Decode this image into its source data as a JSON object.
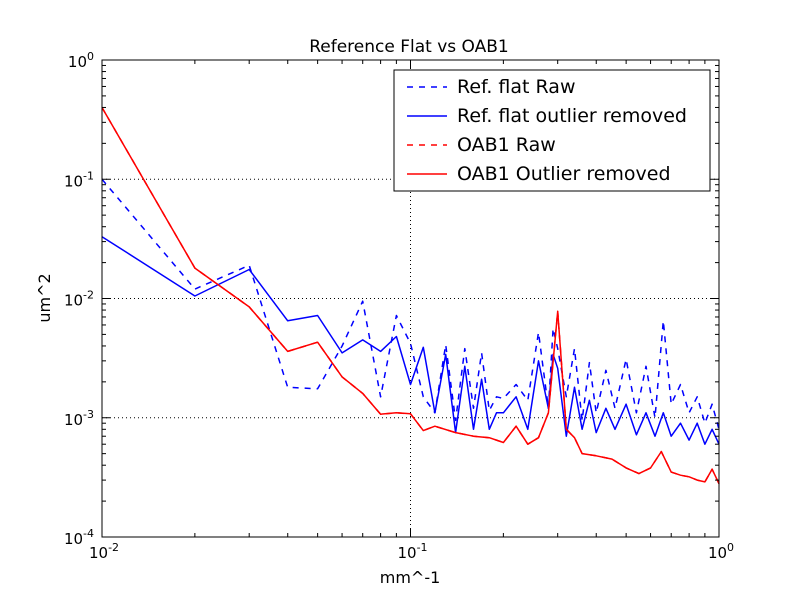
{
  "chart_data": {
    "type": "line",
    "title": "Reference Flat vs OAB1",
    "xlabel": "mm^-1",
    "ylabel": "um^2",
    "xscale": "log",
    "yscale": "log",
    "xlim": [
      0.01,
      1
    ],
    "ylim": [
      0.0001,
      1
    ],
    "grid": "major, dotted",
    "legend_position": "top-right",
    "x_ticks": [
      {
        "value": 0.01,
        "base": "10",
        "exp": "-2"
      },
      {
        "value": 0.1,
        "base": "10",
        "exp": "-1"
      },
      {
        "value": 1,
        "base": "10",
        "exp": "0"
      }
    ],
    "y_ticks": [
      {
        "value": 0.0001,
        "base": "10",
        "exp": "-4"
      },
      {
        "value": 0.001,
        "base": "10",
        "exp": "-3"
      },
      {
        "value": 0.01,
        "base": "10",
        "exp": "-2"
      },
      {
        "value": 0.1,
        "base": "10",
        "exp": "-1"
      },
      {
        "value": 1,
        "base": "10",
        "exp": "0"
      }
    ],
    "series": [
      {
        "name": "Ref. flat Raw",
        "color": "#0000ff",
        "dash": "dashed",
        "x": [
          0.01,
          0.02,
          0.03,
          0.04,
          0.05,
          0.06,
          0.07,
          0.08,
          0.09,
          0.1,
          0.11,
          0.12,
          0.13,
          0.14,
          0.15,
          0.16,
          0.17,
          0.18,
          0.19,
          0.2,
          0.22,
          0.24,
          0.26,
          0.28,
          0.29,
          0.3,
          0.32,
          0.34,
          0.36,
          0.38,
          0.4,
          0.43,
          0.46,
          0.5,
          0.54,
          0.58,
          0.62,
          0.66,
          0.7,
          0.75,
          0.8,
          0.85,
          0.9,
          0.95,
          1.0
        ],
        "y": [
          0.1,
          0.012,
          0.019,
          0.0018,
          0.00175,
          0.004,
          0.0095,
          0.0015,
          0.0072,
          0.0042,
          0.0015,
          0.0011,
          0.0041,
          0.00095,
          0.0038,
          0.0012,
          0.0035,
          0.00115,
          0.0015,
          0.00145,
          0.0019,
          0.0014,
          0.0052,
          0.0012,
          0.0056,
          0.0038,
          0.0015,
          0.0038,
          0.00095,
          0.0029,
          0.0011,
          0.0025,
          0.0012,
          0.0031,
          0.0011,
          0.0027,
          0.001,
          0.0065,
          0.0013,
          0.0019,
          0.0011,
          0.0015,
          0.0009,
          0.0013,
          0.0008
        ]
      },
      {
        "name": "Ref. flat outlier removed",
        "color": "#0000ff",
        "dash": "solid",
        "x": [
          0.01,
          0.02,
          0.03,
          0.04,
          0.05,
          0.06,
          0.07,
          0.08,
          0.09,
          0.1,
          0.11,
          0.12,
          0.13,
          0.14,
          0.15,
          0.16,
          0.17,
          0.18,
          0.19,
          0.2,
          0.22,
          0.24,
          0.26,
          0.28,
          0.29,
          0.3,
          0.32,
          0.34,
          0.36,
          0.38,
          0.4,
          0.43,
          0.46,
          0.5,
          0.54,
          0.58,
          0.62,
          0.66,
          0.7,
          0.75,
          0.8,
          0.85,
          0.9,
          0.95,
          1.0
        ],
        "y": [
          0.033,
          0.0105,
          0.0175,
          0.0065,
          0.0072,
          0.0035,
          0.0045,
          0.0036,
          0.0048,
          0.0019,
          0.0039,
          0.0011,
          0.0034,
          0.00075,
          0.0027,
          0.0008,
          0.0021,
          0.0008,
          0.0011,
          0.0011,
          0.0015,
          0.0008,
          0.003,
          0.0012,
          0.0034,
          0.0026,
          0.0007,
          0.0018,
          0.0008,
          0.0014,
          0.00075,
          0.0012,
          0.0008,
          0.0013,
          0.00072,
          0.0011,
          0.0007,
          0.0011,
          0.0007,
          0.0009,
          0.00065,
          0.0009,
          0.0006,
          0.0008,
          0.0006
        ]
      },
      {
        "name": "OAB1 Raw",
        "color": "#ff0000",
        "dash": "dashed",
        "x": [
          0.01,
          0.02,
          0.03,
          0.04,
          0.05,
          0.06,
          0.07,
          0.08,
          0.09,
          0.1,
          0.11,
          0.12,
          0.14,
          0.16,
          0.18,
          0.2,
          0.22,
          0.24,
          0.26,
          0.28,
          0.3,
          0.32,
          0.34,
          0.36,
          0.4,
          0.45,
          0.5,
          0.55,
          0.6,
          0.65,
          0.7,
          0.75,
          0.8,
          0.85,
          0.9,
          0.95,
          1.0
        ],
        "y": [
          0.4,
          0.018,
          0.0085,
          0.0036,
          0.0043,
          0.0022,
          0.0016,
          0.00107,
          0.0011,
          0.00108,
          0.00078,
          0.00085,
          0.00075,
          0.0007,
          0.00068,
          0.00062,
          0.00085,
          0.0006,
          0.00068,
          0.0011,
          0.0078,
          0.0008,
          0.00068,
          0.0005,
          0.00048,
          0.00045,
          0.00038,
          0.00034,
          0.00038,
          0.00052,
          0.00035,
          0.00033,
          0.00032,
          0.0003,
          0.00029,
          0.00037,
          0.00028
        ]
      },
      {
        "name": "OAB1 Outlier removed",
        "color": "#ff0000",
        "dash": "solid",
        "x": [
          0.01,
          0.02,
          0.03,
          0.04,
          0.05,
          0.06,
          0.07,
          0.08,
          0.09,
          0.1,
          0.11,
          0.12,
          0.14,
          0.16,
          0.18,
          0.2,
          0.22,
          0.24,
          0.26,
          0.28,
          0.3,
          0.32,
          0.34,
          0.36,
          0.4,
          0.45,
          0.5,
          0.55,
          0.6,
          0.65,
          0.7,
          0.75,
          0.8,
          0.85,
          0.9,
          0.95,
          1.0
        ],
        "y": [
          0.4,
          0.018,
          0.0085,
          0.0036,
          0.0043,
          0.0022,
          0.0016,
          0.00107,
          0.0011,
          0.00108,
          0.00078,
          0.00085,
          0.00075,
          0.0007,
          0.00068,
          0.00062,
          0.00085,
          0.0006,
          0.00068,
          0.0011,
          0.0078,
          0.0008,
          0.00068,
          0.0005,
          0.00048,
          0.00045,
          0.00038,
          0.00034,
          0.00038,
          0.00052,
          0.00035,
          0.00033,
          0.00032,
          0.0003,
          0.00029,
          0.00037,
          0.00028
        ]
      }
    ]
  }
}
